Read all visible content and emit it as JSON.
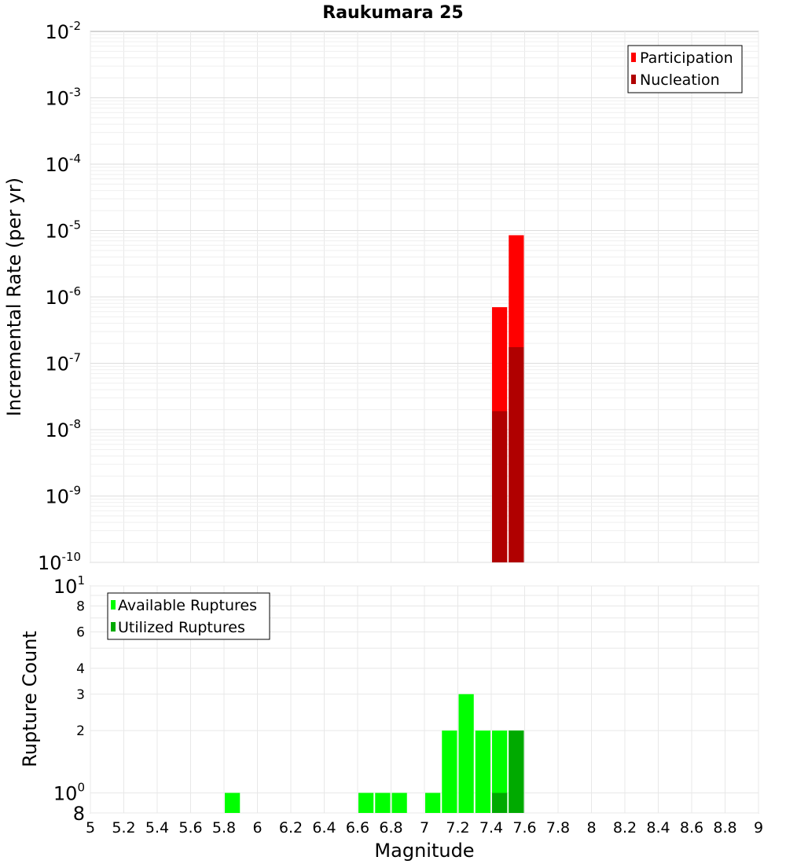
{
  "chart_data": [
    {
      "type": "bar",
      "title": "Raukumara 25",
      "xlabel": "Magnitude",
      "ylabel": "Incremental Rate (per yr)",
      "y_scale": "log",
      "ylim": [
        1e-10,
        0.01
      ],
      "xlim": [
        5,
        9
      ],
      "bin_width": 0.1,
      "grid": true,
      "legend_position": "top-right",
      "y_ticks": [
        {
          "base": "10",
          "exp": "-2"
        },
        {
          "base": "10",
          "exp": "-3"
        },
        {
          "base": "10",
          "exp": "-4"
        },
        {
          "base": "10",
          "exp": "-5"
        },
        {
          "base": "10",
          "exp": "-6"
        },
        {
          "base": "10",
          "exp": "-7"
        },
        {
          "base": "10",
          "exp": "-8"
        },
        {
          "base": "10",
          "exp": "-9"
        },
        {
          "base": "10",
          "exp": "-10"
        }
      ],
      "series": [
        {
          "name": "Participation",
          "color": "#ff0000",
          "x": [
            7.45,
            7.55
          ],
          "values": [
            7e-07,
            8.5e-06
          ]
        },
        {
          "name": "Nucleation",
          "color": "#b00000",
          "x": [
            7.45,
            7.55
          ],
          "values": [
            1.9e-08,
            1.75e-07
          ]
        }
      ]
    },
    {
      "type": "bar",
      "xlabel": "Magnitude",
      "ylabel": "Rupture Count",
      "y_scale": "log",
      "ylim": [
        0.8,
        10
      ],
      "xlim": [
        5,
        9
      ],
      "bin_width": 0.1,
      "grid": true,
      "legend_position": "top-left",
      "x_tick_labels": [
        "5",
        "5.2",
        "5.4",
        "5.6",
        "5.8",
        "6",
        "6.2",
        "6.4",
        "6.6",
        "6.8",
        "7",
        "7.2",
        "7.4",
        "7.6",
        "7.8",
        "8",
        "8.2",
        "8.4",
        "8.6",
        "8.8",
        "9"
      ],
      "y_ticks": [
        {
          "base": "10",
          "exp": "1",
          "value": 10
        },
        {
          "base": "8",
          "exp": "",
          "value": 8
        },
        {
          "base": "6",
          "exp": "",
          "value": 6
        },
        {
          "base": "4",
          "exp": "",
          "value": 4
        },
        {
          "base": "3",
          "exp": "",
          "value": 3
        },
        {
          "base": "2",
          "exp": "",
          "value": 2
        },
        {
          "base": "10",
          "exp": "0",
          "value": 1
        },
        {
          "base": "8",
          "exp": "",
          "value": 0.8
        }
      ],
      "series": [
        {
          "name": "Available Ruptures",
          "color": "#00ff00",
          "x": [
            5.85,
            6.65,
            6.75,
            6.85,
            7.05,
            7.15,
            7.25,
            7.35,
            7.45,
            7.55
          ],
          "values": [
            1,
            1,
            1,
            1,
            1,
            2,
            3,
            2,
            2,
            2
          ]
        },
        {
          "name": "Utilized Ruptures",
          "color": "#00aa00",
          "x": [
            7.45,
            7.55
          ],
          "values": [
            1,
            2
          ]
        }
      ]
    }
  ]
}
